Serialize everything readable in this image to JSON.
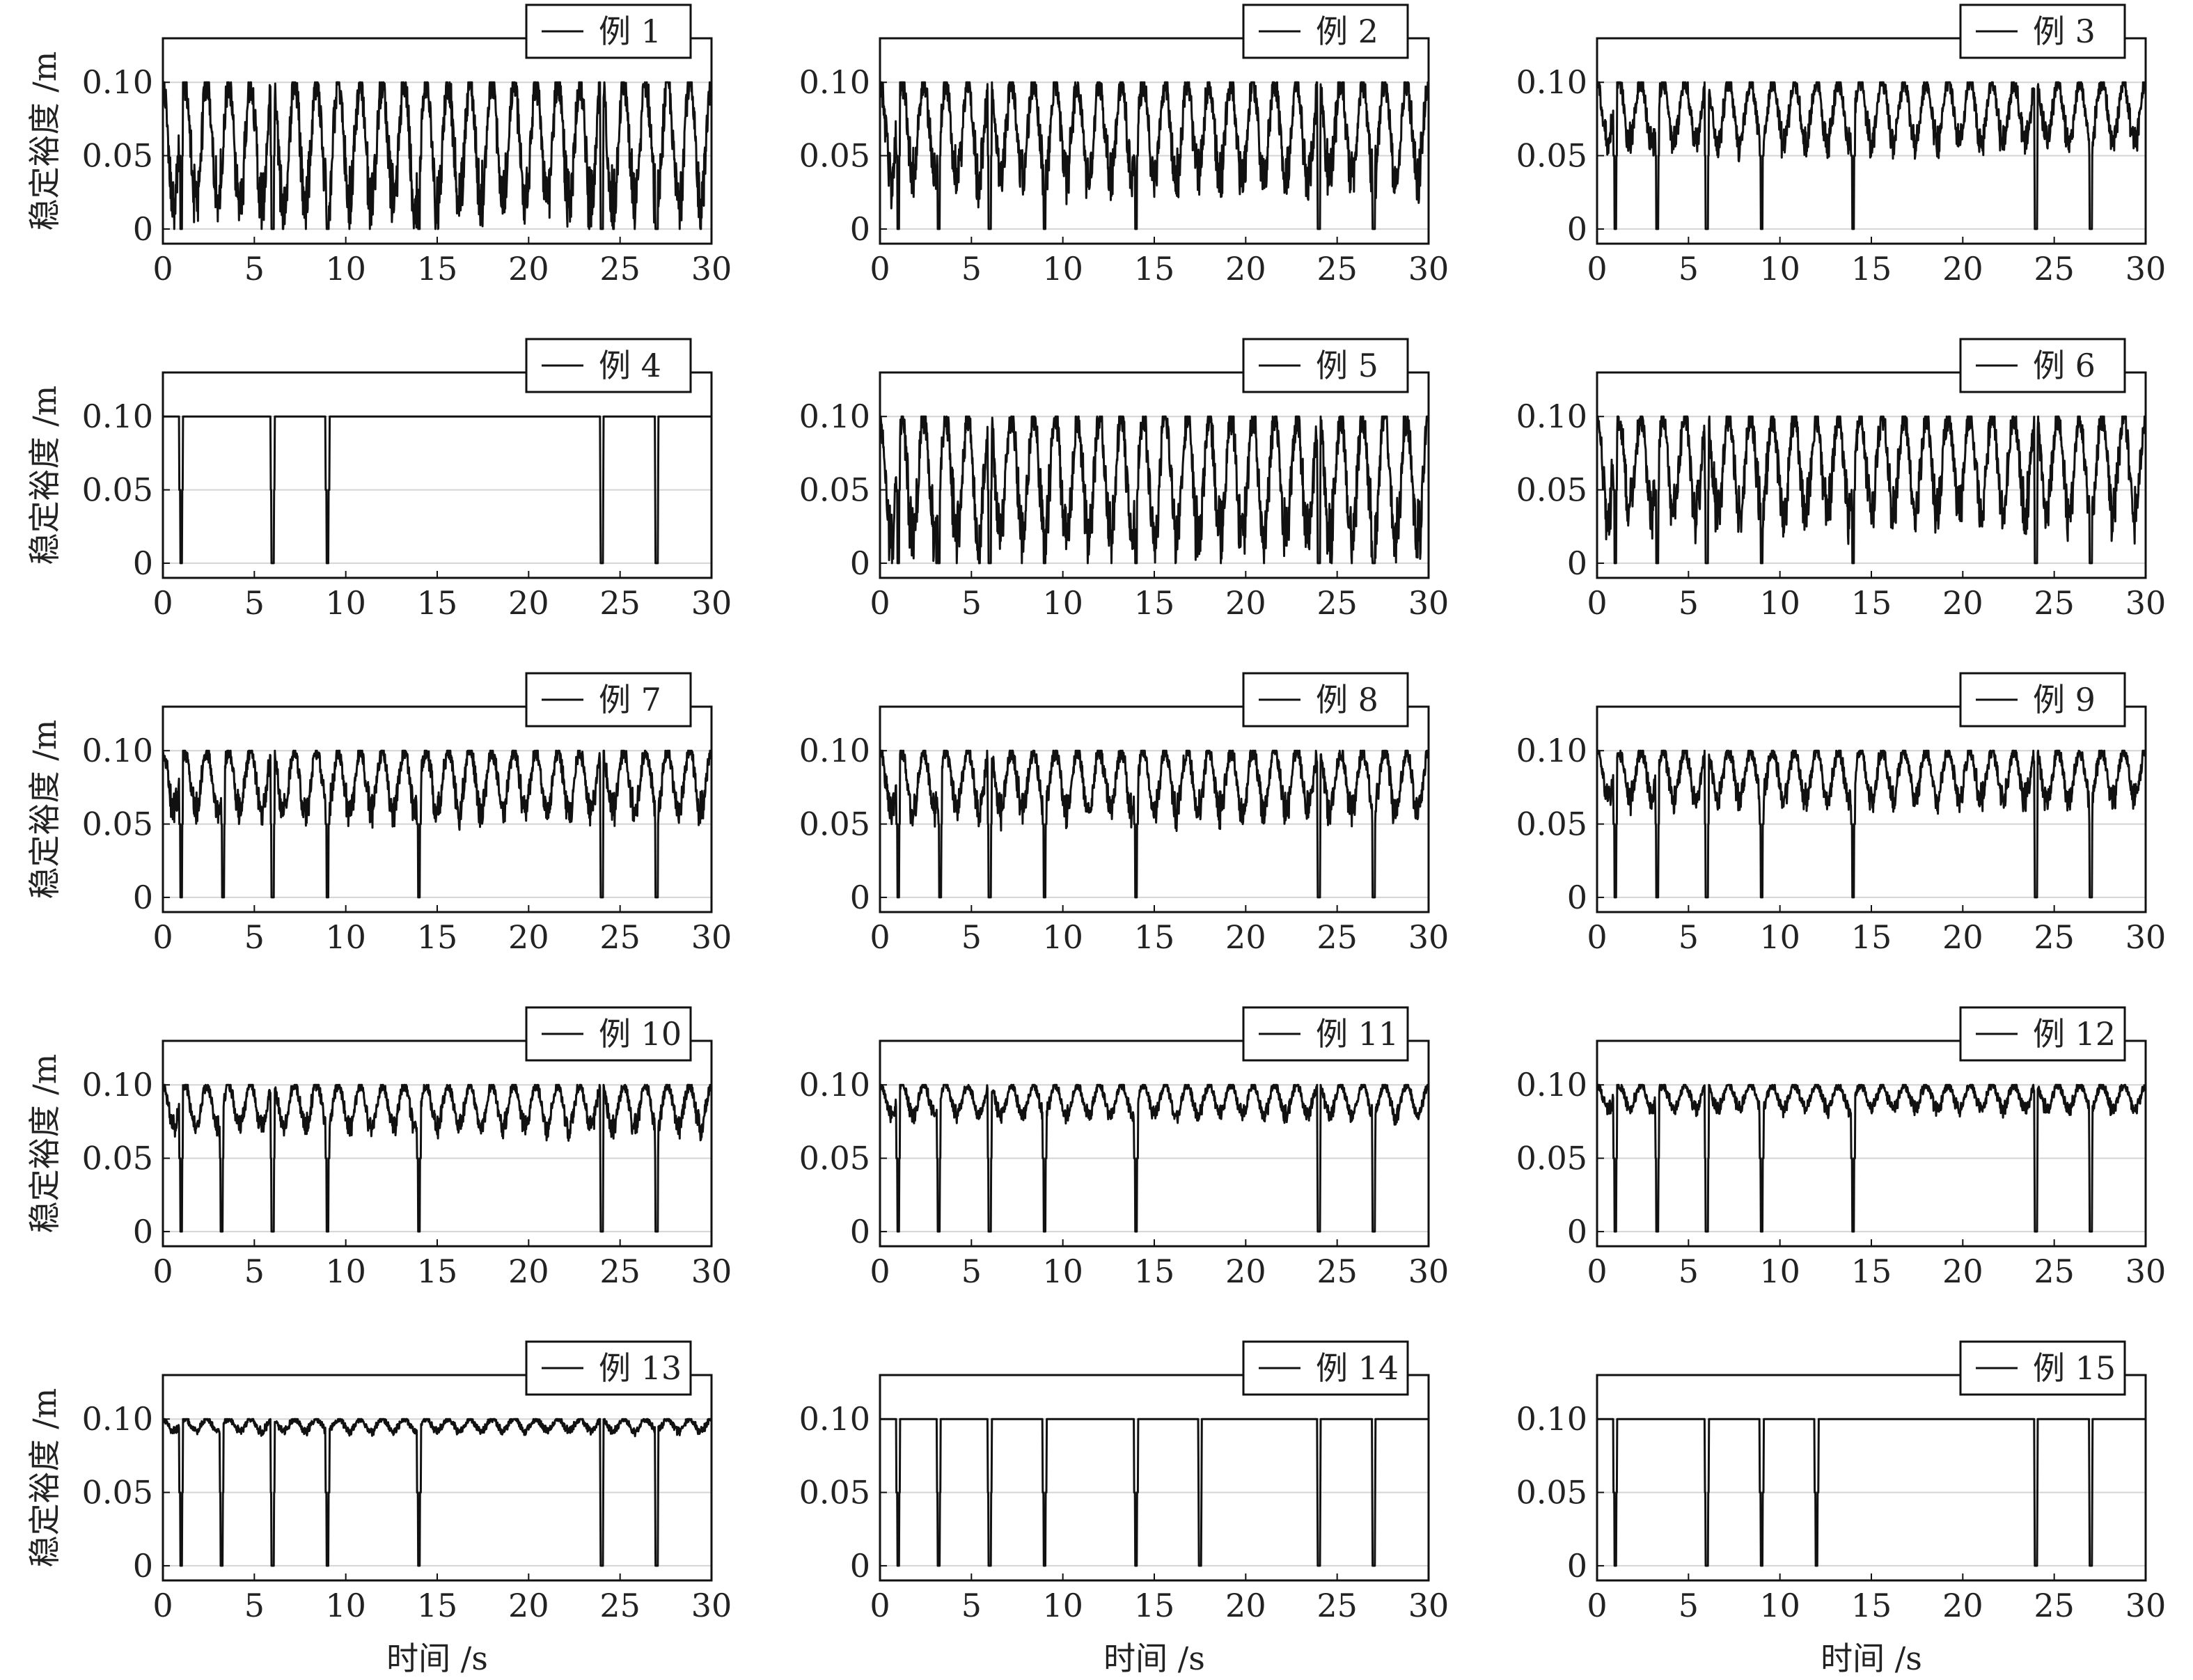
{
  "figure": {
    "ylabel": "稳定裕度 /m",
    "xlabel": "时间 /s"
  },
  "chart_data": {
    "type": "line",
    "layout": "5x3 grid of small multiples",
    "x_range": [
      0,
      30
    ],
    "y_range": [
      -0.01,
      0.13
    ],
    "xticks": [
      0,
      5,
      10,
      15,
      20,
      25,
      30
    ],
    "xtick_labels": [
      "0",
      "5",
      "10",
      "15",
      "20",
      "25",
      "30"
    ],
    "yticks": [
      0,
      0.05,
      0.1
    ],
    "ytick_labels": [
      "0",
      "0.05",
      "0.10"
    ],
    "grid": "horizontal",
    "legend_position": "top-right",
    "line_color": "#111111",
    "period_s": 1.2,
    "zero_drop_times_s": [
      1.0,
      6.0,
      9.0,
      14.0,
      24.0,
      27.0
    ],
    "panels": [
      {
        "legend": "例 1",
        "max": 0.1,
        "min": 0.0,
        "noise": 0.012,
        "drops": [
          1.0,
          6.0,
          9.0,
          14.0,
          24.0,
          27.0
        ]
      },
      {
        "legend": "例 2",
        "max": 0.1,
        "min": 0.02,
        "noise": 0.01,
        "drops": [
          1.0,
          3.2,
          6.0,
          9.0,
          14.0,
          24.0,
          27.0
        ]
      },
      {
        "legend": "例 3",
        "max": 0.1,
        "min": 0.05,
        "noise": 0.006,
        "drops": [
          1.0,
          3.3,
          6.0,
          9.0,
          14.0,
          24.0,
          27.0
        ]
      },
      {
        "legend": "例 4",
        "max": 0.1,
        "min": 0.1,
        "noise": 0.002,
        "drops": [
          1.0,
          6.0,
          9.0,
          24.0,
          27.0
        ]
      },
      {
        "legend": "例 5",
        "max": 0.1,
        "min": 0.0,
        "noise": 0.012,
        "drops": [
          1.0,
          3.2,
          6.0,
          9.0,
          14.0,
          24.0,
          27.0
        ]
      },
      {
        "legend": "例 6",
        "max": 0.1,
        "min": 0.02,
        "noise": 0.01,
        "drops": [
          1.0,
          3.3,
          6.0,
          9.0,
          14.0,
          24.0,
          27.0
        ]
      },
      {
        "legend": "例 7",
        "max": 0.1,
        "min": 0.05,
        "noise": 0.006,
        "drops": [
          1.0,
          3.3,
          6.0,
          9.0,
          14.0,
          24.0,
          27.0
        ]
      },
      {
        "legend": "例 8",
        "max": 0.1,
        "min": 0.05,
        "noise": 0.006,
        "drops": [
          1.0,
          3.3,
          6.0,
          9.0,
          14.0,
          24.0,
          27.0
        ]
      },
      {
        "legend": "例 9",
        "max": 0.1,
        "min": 0.06,
        "noise": 0.005,
        "drops": [
          1.0,
          3.3,
          6.0,
          9.0,
          14.0,
          24.0,
          27.0
        ]
      },
      {
        "legend": "例 10",
        "max": 0.1,
        "min": 0.065,
        "noise": 0.004,
        "drops": [
          1.0,
          3.2,
          6.0,
          9.0,
          14.0,
          24.0,
          27.0
        ]
      },
      {
        "legend": "例 11",
        "max": 0.1,
        "min": 0.075,
        "noise": 0.003,
        "drops": [
          1.0,
          3.2,
          6.0,
          9.0,
          14.0,
          24.0,
          27.0
        ]
      },
      {
        "legend": "例 12",
        "max": 0.1,
        "min": 0.08,
        "noise": 0.003,
        "drops": [
          1.0,
          3.3,
          6.0,
          9.0,
          14.0,
          24.0,
          27.0
        ]
      },
      {
        "legend": "例 13",
        "max": 0.1,
        "min": 0.09,
        "noise": 0.002,
        "drops": [
          1.0,
          3.2,
          6.0,
          9.0,
          14.0,
          24.0,
          27.0
        ]
      },
      {
        "legend": "例 14",
        "max": 0.1,
        "min": 0.1,
        "noise": 0.0,
        "drops": [
          1.0,
          3.2,
          6.0,
          9.0,
          14.0,
          17.5,
          24.0,
          27.0
        ]
      },
      {
        "legend": "例 15",
        "max": 0.1,
        "min": 0.1,
        "noise": 0.0,
        "drops": [
          1.0,
          6.0,
          9.0,
          12.0,
          24.0,
          27.0
        ]
      }
    ]
  }
}
